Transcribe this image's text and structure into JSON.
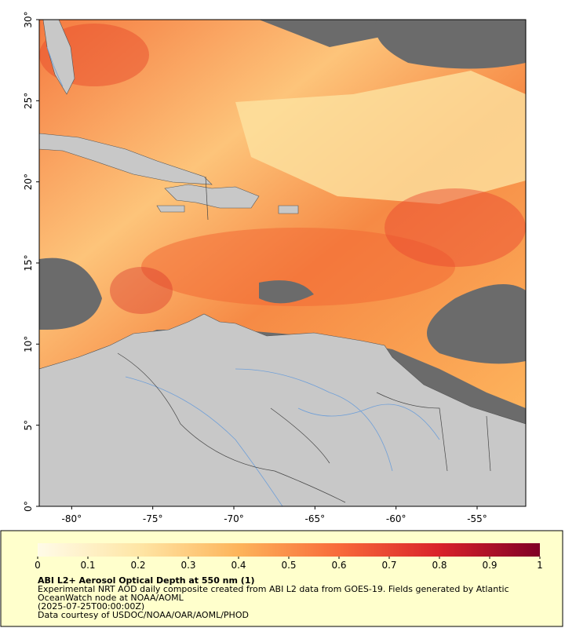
{
  "map": {
    "title": "ABI L2+ Aerosol Optical Depth at 550 nm (1)",
    "description": "Experimental NRT AOD daily composite created from ABI L2 data from GOES-19. Fields generated by Atlantic OceanWatch node at NOAA/AOML",
    "date": "(2025-07-25T00:00:00Z)",
    "credit": "Data courtesy of USDOC/NOAA/OAR/AOML/PHOD",
    "lonlim": [
      -82,
      -52
    ],
    "latlim": [
      0,
      30
    ],
    "lonticks": [
      {
        "value": -80,
        "label": "-80°"
      },
      {
        "value": -75,
        "label": "-75°"
      },
      {
        "value": -70,
        "label": "-70°"
      },
      {
        "value": -65,
        "label": "-65°"
      },
      {
        "value": -60,
        "label": "-60°"
      },
      {
        "value": -55,
        "label": "-55°"
      }
    ],
    "latticks": [
      {
        "value": 0,
        "label": "0°"
      },
      {
        "value": 5,
        "label": "5°"
      },
      {
        "value": 10,
        "label": "10°"
      },
      {
        "value": 15,
        "label": "15°"
      },
      {
        "value": 20,
        "label": "20°"
      },
      {
        "value": 25,
        "label": "25°"
      },
      {
        "value": 30,
        "label": "30°"
      }
    ],
    "colorbar": {
      "lim": [
        0,
        1
      ],
      "ticks": [
        0,
        0.1,
        0.2,
        0.3,
        0.4,
        0.5,
        0.6,
        0.7,
        0.8,
        0.9,
        1
      ]
    }
  }
}
